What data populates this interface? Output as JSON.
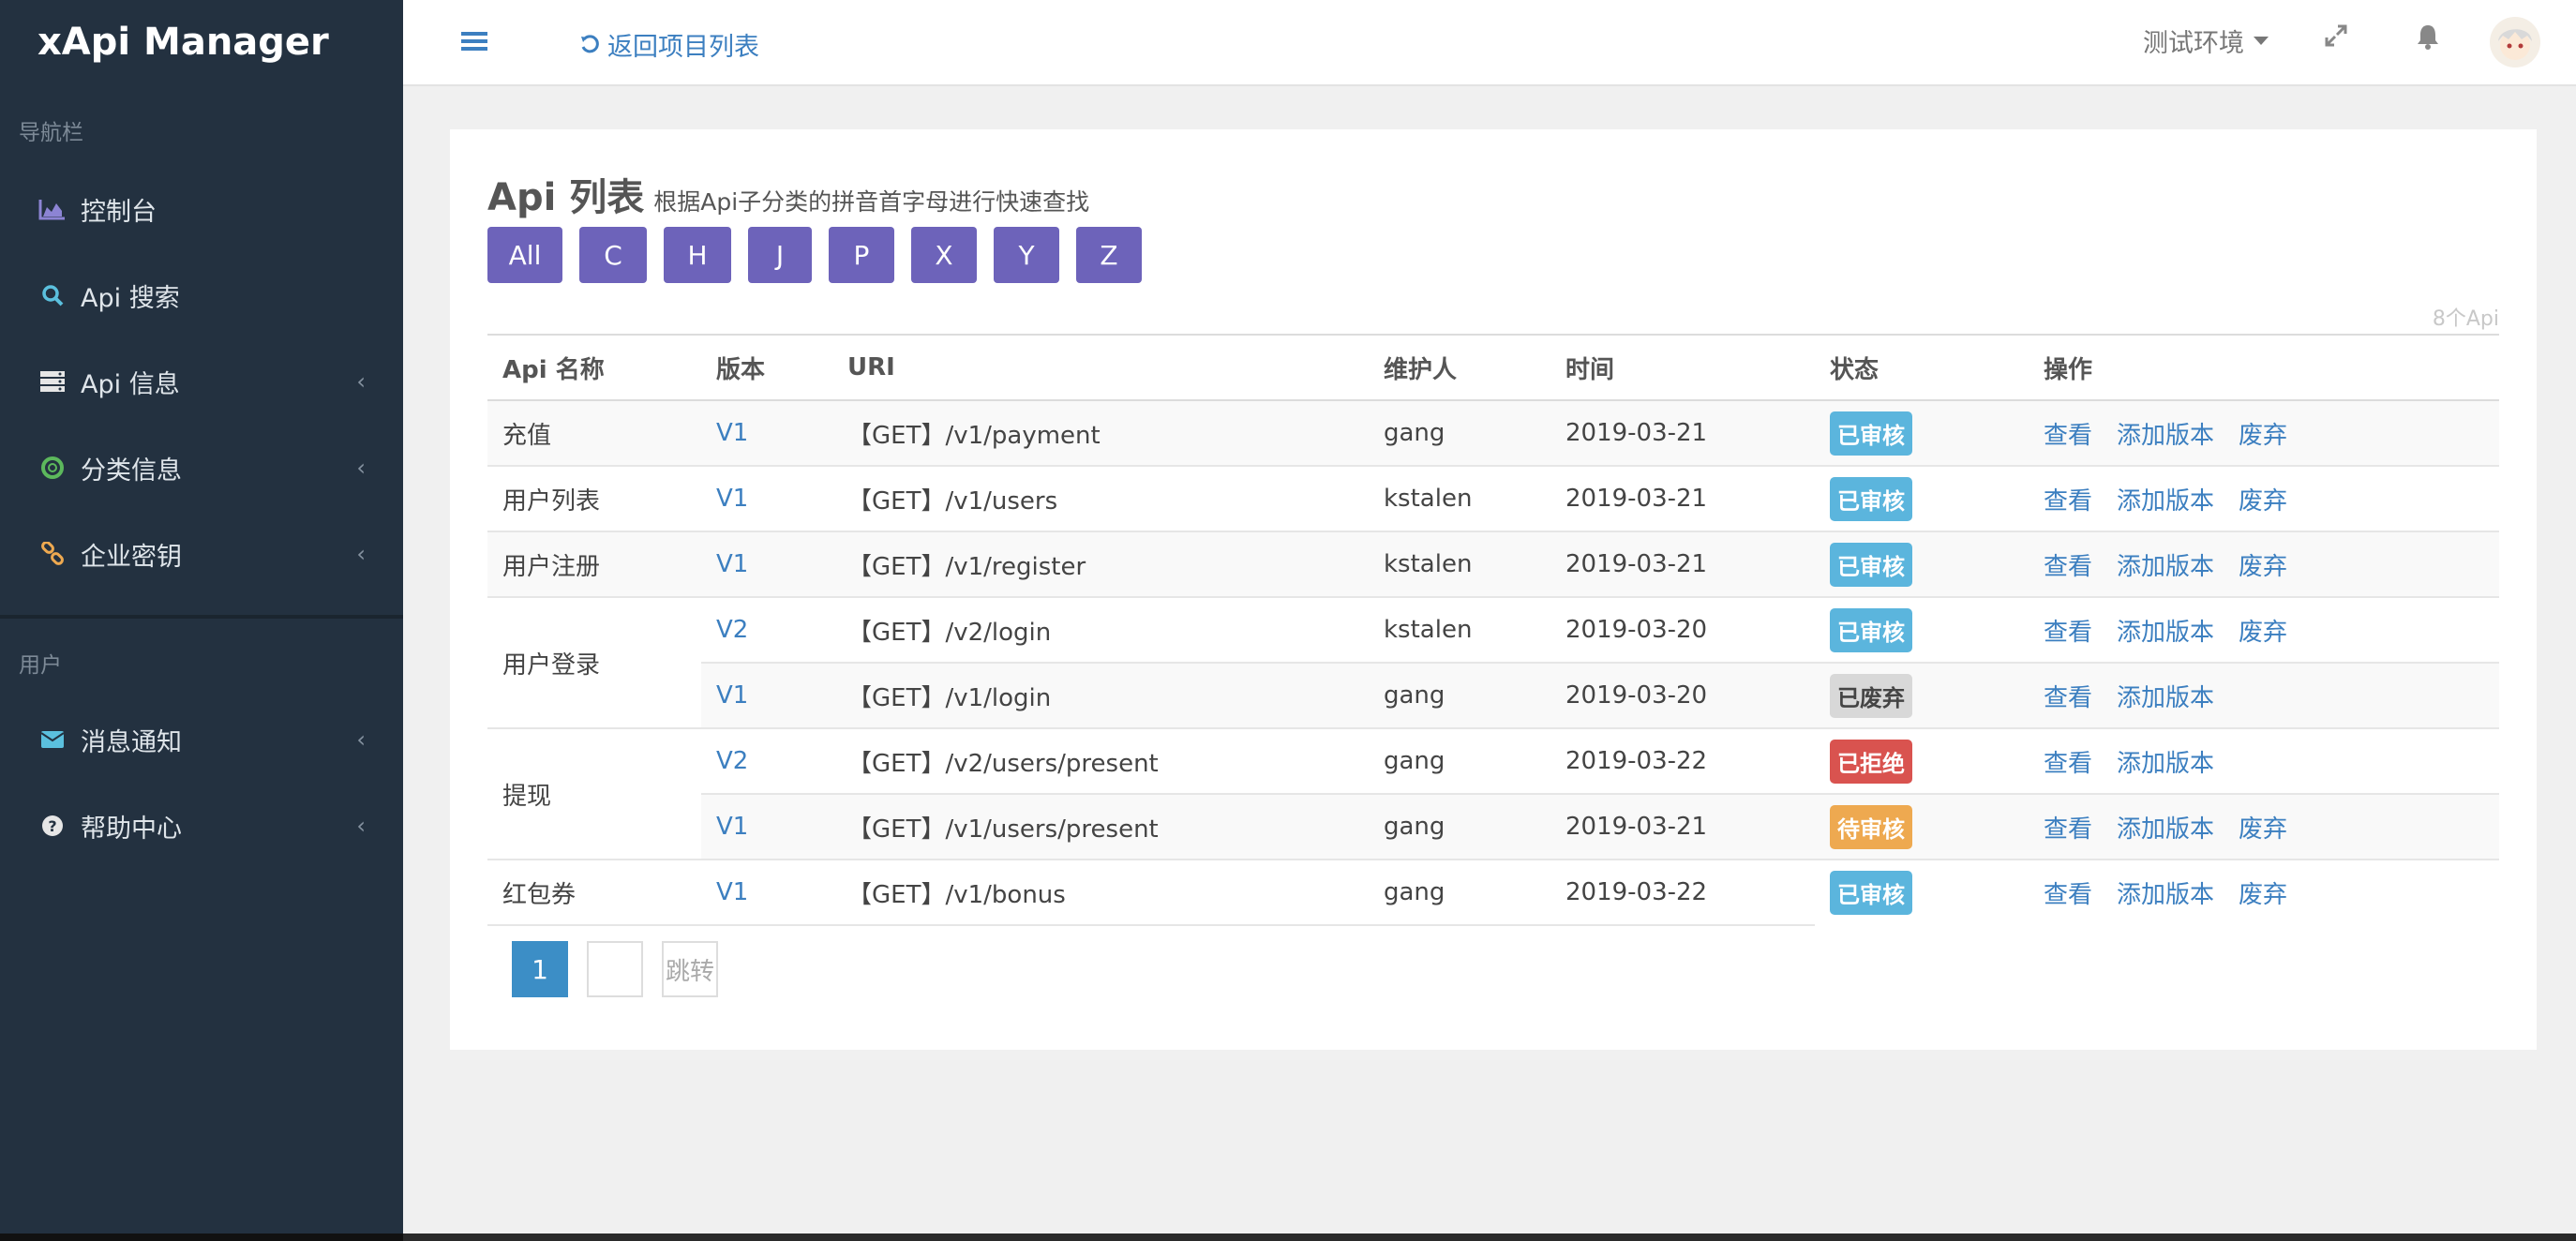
{
  "app": {
    "title": "xApi Manager"
  },
  "sidebar": {
    "section_nav": "导航栏",
    "section_user": "用户",
    "items": [
      {
        "label": "控制台",
        "icon": "area-chart-icon"
      },
      {
        "label": "Api 搜索",
        "icon": "search-icon"
      },
      {
        "label": "Api 信息",
        "icon": "server-icon",
        "arrow": "‹"
      },
      {
        "label": "分类信息",
        "icon": "life-ring-icon",
        "arrow": "‹"
      },
      {
        "label": "企业密钥",
        "icon": "link-icon",
        "arrow": "‹"
      },
      {
        "label": "消息通知",
        "icon": "envelope-icon",
        "arrow": "‹"
      },
      {
        "label": "帮助中心",
        "icon": "question-circle-icon",
        "arrow": "‹"
      }
    ]
  },
  "header": {
    "back_label": "返回项目列表",
    "env_label": "测试环境"
  },
  "main": {
    "title": "Api 列表",
    "subtitle": "根据Api子分类的拼音首字母进行快速查找",
    "letters": [
      "All",
      "C",
      "H",
      "J",
      "P",
      "X",
      "Y",
      "Z"
    ],
    "count": "8个Api",
    "columns": [
      "Api 名称",
      "版本",
      "URI",
      "维护人",
      "时间",
      "状态",
      "操作"
    ],
    "rows": [
      {
        "name": "充值",
        "version": "V1",
        "uri": "【GET】/v1/payment",
        "maintainer": "gang",
        "date": "2019-03-21",
        "status": "已审核",
        "ops": [
          "查看",
          "添加版本",
          "废弃"
        ]
      },
      {
        "name": "用户列表",
        "version": "V1",
        "uri": "【GET】/v1/users",
        "maintainer": "kstalen",
        "date": "2019-03-21",
        "status": "已审核",
        "ops": [
          "查看",
          "添加版本",
          "废弃"
        ]
      },
      {
        "name": "用户注册",
        "version": "V1",
        "uri": "【GET】/v1/register",
        "maintainer": "kstalen",
        "date": "2019-03-21",
        "status": "已审核",
        "ops": [
          "查看",
          "添加版本",
          "废弃"
        ]
      },
      {
        "name": "用户登录",
        "version": "V2",
        "uri": "【GET】/v2/login",
        "maintainer": "kstalen",
        "date": "2019-03-20",
        "status": "已审核",
        "ops": [
          "查看",
          "添加版本",
          "废弃"
        ]
      },
      {
        "name": "",
        "version": "V1",
        "uri": "【GET】/v1/login",
        "maintainer": "gang",
        "date": "2019-03-20",
        "status": "已废弃",
        "ops": [
          "查看",
          "添加版本"
        ]
      },
      {
        "name": "提现",
        "version": "V2",
        "uri": "【GET】/v2/users/present",
        "maintainer": "gang",
        "date": "2019-03-22",
        "status": "已拒绝",
        "ops": [
          "查看",
          "添加版本"
        ]
      },
      {
        "name": "",
        "version": "V1",
        "uri": "【GET】/v1/users/present",
        "maintainer": "gang",
        "date": "2019-03-21",
        "status": "待审核",
        "ops": [
          "查看",
          "添加版本",
          "废弃"
        ]
      },
      {
        "name": "红包券",
        "version": "V1",
        "uri": "【GET】/v1/bonus",
        "maintainer": "gang",
        "date": "2019-03-22",
        "status": "已审核",
        "ops": [
          "查看",
          "添加版本",
          "废弃"
        ]
      }
    ],
    "pager": {
      "current": "1",
      "jump_label": "跳转"
    }
  },
  "colors": {
    "sidebar_bg": "#233140",
    "accent_blue": "#3c7fc0",
    "letter_btn": "#6d63ba",
    "status_approved": "#5bb5dd",
    "status_abandoned": "#d8d8d8",
    "status_rejected": "#d9534f",
    "status_pending": "#eea950"
  }
}
